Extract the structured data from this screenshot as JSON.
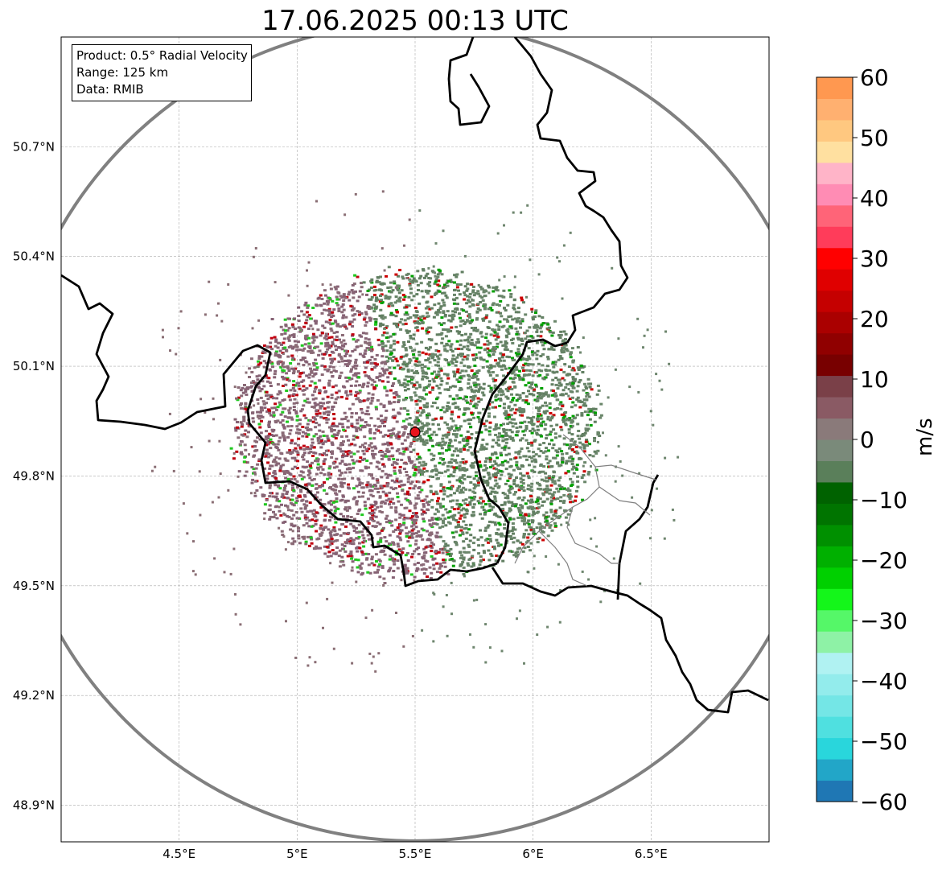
{
  "title": "17.06.2025 00:13 UTC",
  "info": {
    "product": "Product: 0.5° Radial Velocity",
    "range": "Range: 125 km",
    "data": "Data: RMIB"
  },
  "map": {
    "lon_range": [
      4.0,
      7.0
    ],
    "lat_range": [
      48.8,
      51.0
    ],
    "lon_ticks": [
      {
        "value": 4.5,
        "label": "4.5°E"
      },
      {
        "value": 5.0,
        "label": "5°E"
      },
      {
        "value": 5.5,
        "label": "5.5°E"
      },
      {
        "value": 6.0,
        "label": "6°E"
      },
      {
        "value": 6.5,
        "label": "6.5°E"
      }
    ],
    "lat_ticks": [
      {
        "value": 50.7,
        "label": "50.7°N"
      },
      {
        "value": 50.4,
        "label": "50.4°N"
      },
      {
        "value": 50.1,
        "label": "50.1°N"
      },
      {
        "value": 49.8,
        "label": "49.8°N"
      },
      {
        "value": 49.5,
        "label": "49.5°N"
      },
      {
        "value": 49.2,
        "label": "49.2°N"
      },
      {
        "value": 48.9,
        "label": "48.9°N"
      }
    ],
    "grid": true,
    "radar_site": {
      "lon": 5.5,
      "lat": 49.92
    },
    "range_ring_color": "#808080",
    "site_color": "#e8141c"
  },
  "colorbar": {
    "label": "m/s",
    "min": -60,
    "max": 60,
    "ticks": [
      {
        "value": 60,
        "label": "60"
      },
      {
        "value": 50,
        "label": "50"
      },
      {
        "value": 40,
        "label": "40"
      },
      {
        "value": 30,
        "label": "30"
      },
      {
        "value": 20,
        "label": "20"
      },
      {
        "value": 10,
        "label": "10"
      },
      {
        "value": 0,
        "label": "0"
      },
      {
        "value": -10,
        "label": "−10"
      },
      {
        "value": -20,
        "label": "−20"
      },
      {
        "value": -30,
        "label": "−30"
      },
      {
        "value": -40,
        "label": "−40"
      },
      {
        "value": -50,
        "label": "−50"
      },
      {
        "value": -60,
        "label": "−60"
      }
    ],
    "colors": [
      "#1f77b4",
      "#22a6c8",
      "#29d6dc",
      "#4fe0e0",
      "#74e6e6",
      "#93ecec",
      "#b0f2f2",
      "#8ef2a6",
      "#55f768",
      "#14f61a",
      "#00d000",
      "#00b000",
      "#009000",
      "#007400",
      "#006200",
      "#5a7f5a",
      "#7a8a7a",
      "#8a7a7a",
      "#8a5a64",
      "#7a4048",
      "#780000",
      "#900000",
      "#aa0000",
      "#c50000",
      "#e00000",
      "#ff0000",
      "#ff3c5a",
      "#ff6478",
      "#ff8cb4",
      "#ffb4c8",
      "#ffe0a0",
      "#ffc880",
      "#ffb070",
      "#ff9850"
    ]
  }
}
